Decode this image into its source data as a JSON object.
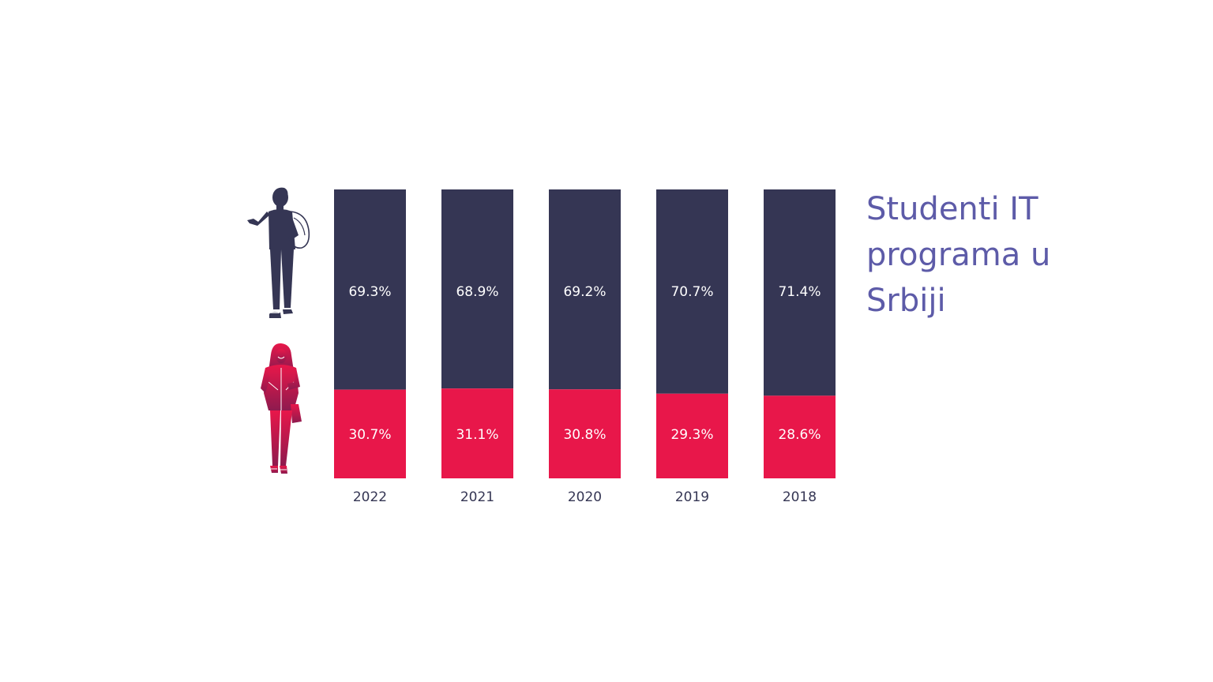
{
  "colors": {
    "male": "#353654",
    "female": "#e8174a",
    "title": "#5d5ba8",
    "tick": "#353654",
    "label": "#ffffff",
    "female_figure_top": "#e8174a",
    "female_figure_bottom": "#8e1a4e"
  },
  "icons": {
    "male": "male-student-figure",
    "female": "female-student-figure"
  },
  "chart_data": {
    "type": "bar",
    "stacked": true,
    "normalized_percent": true,
    "title_lines": [
      "Studenti IT",
      "programa u",
      "Srbiji"
    ],
    "categories": [
      "2022",
      "2021",
      "2020",
      "2019",
      "2018"
    ],
    "series": [
      {
        "key": "male",
        "values": [
          69.3,
          68.9,
          69.2,
          70.7,
          71.4
        ],
        "labels": [
          "69.3%",
          "68.9%",
          "69.2%",
          "70.7%",
          "71.4%"
        ]
      },
      {
        "key": "female",
        "values": [
          30.7,
          31.1,
          30.8,
          29.3,
          28.6
        ],
        "labels": [
          "30.7%",
          "31.1%",
          "30.8%",
          "29.3%",
          "28.6%"
        ]
      }
    ],
    "ylim": [
      0,
      100
    ],
    "grid": false,
    "legend": "none"
  }
}
